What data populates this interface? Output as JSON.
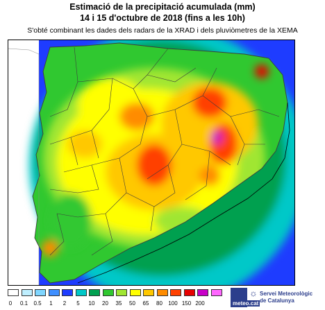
{
  "header": {
    "title_line1": "Estimació de la precipitació acumulada (mm)",
    "title_line2": "14 i 15 d'octubre de 2018 (fins a les 10h)",
    "subtitle": "S'obté combinant les dades dels radars de la XRAD i dels pluviòmetres de la XEMA"
  },
  "legend": {
    "items": [
      {
        "label": "0",
        "color": "#ffffff"
      },
      {
        "label": "0.1",
        "color": "#bfefff"
      },
      {
        "label": "0.5",
        "color": "#7fd6ff"
      },
      {
        "label": "1",
        "color": "#3f8fff"
      },
      {
        "label": "2",
        "color": "#1e3cff"
      },
      {
        "label": "5",
        "color": "#00c8c8"
      },
      {
        "label": "10",
        "color": "#00a050"
      },
      {
        "label": "20",
        "color": "#30c830"
      },
      {
        "label": "35",
        "color": "#a0e632"
      },
      {
        "label": "50",
        "color": "#ffff00"
      },
      {
        "label": "65",
        "color": "#ffc800"
      },
      {
        "label": "80",
        "color": "#ff8c00"
      },
      {
        "label": "100",
        "color": "#ff4000"
      },
      {
        "label": "150",
        "color": "#e60000"
      },
      {
        "label": "200",
        "color": "#c800c8"
      },
      {
        "label": "",
        "color": "#ff66ff"
      }
    ]
  },
  "logo": {
    "domain": "meteo.cat",
    "name_line1": "Servei Meteorològic",
    "name_line2": "de Catalunya",
    "wave_icon": "wave-icon",
    "sun_icon": "sun-icon"
  }
}
